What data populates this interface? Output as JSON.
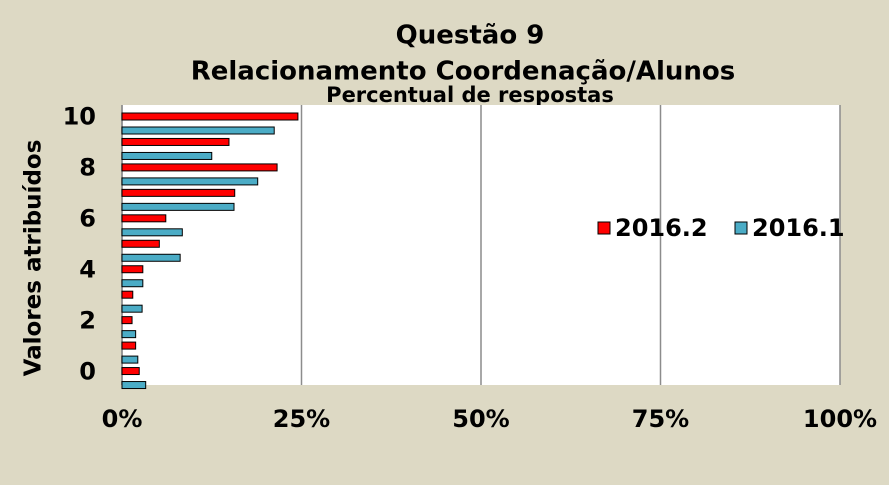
{
  "chart_data": {
    "type": "bar",
    "orientation": "horizontal",
    "title": "Questão 9",
    "subtitle": "Relacionamento Coordenação/Alunos",
    "x_label": "Percentual de respostas",
    "y_label": "Valores atribuídos",
    "categories": [
      "0",
      null,
      "2",
      null,
      "4",
      null,
      "6",
      null,
      "8",
      null,
      "10"
    ],
    "series": [
      {
        "name": "2016.2",
        "color": "#ff0000",
        "values": [
          2.4,
          1.9,
          1.4,
          1.5,
          2.9,
          5.2,
          6.1,
          15.7,
          21.6,
          14.9,
          24.5
        ]
      },
      {
        "name": "2016.1",
        "color": "#4bacc6",
        "values": [
          3.3,
          2.2,
          1.9,
          2.8,
          2.9,
          8.1,
          8.4,
          15.6,
          18.9,
          12.5,
          21.2
        ]
      }
    ],
    "xlim": [
      0,
      100
    ],
    "xticks": [
      {
        "value": 0,
        "label": "0%"
      },
      {
        "value": 25,
        "label": "25%"
      },
      {
        "value": 50,
        "label": "50%"
      },
      {
        "value": 75,
        "label": "75%"
      },
      {
        "value": 100,
        "label": "100%"
      }
    ],
    "grid": true,
    "legend": "right"
  }
}
